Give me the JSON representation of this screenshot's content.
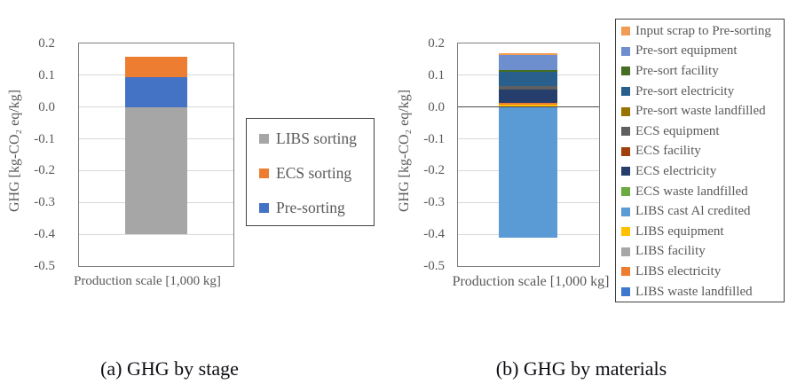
{
  "chart_data": [
    {
      "type": "bar",
      "caption": "(a) GHG by stage",
      "xlabel": "Production scale [1,000 kg]",
      "ylabel": "GHG [kg-CO₂ eq/kg]",
      "categories": [
        "Production scale [1,000 kg]"
      ],
      "ylim": [
        -0.5,
        0.2
      ],
      "y_ticks": [
        0.2,
        0.1,
        0.0,
        -0.1,
        -0.2,
        -0.3,
        -0.4,
        -0.5
      ],
      "y_tick_labels": [
        "0.2",
        "0.1",
        "0.0",
        "-0.1",
        "-0.2",
        "-0.3",
        "-0.4",
        "-0.5"
      ],
      "grid": true,
      "zero_axis_line": false,
      "legend_position": "right",
      "series": [
        {
          "name": "LIBS sorting",
          "value": -0.4,
          "color": "#A6A6A6"
        },
        {
          "name": "ECS sorting",
          "value": 0.062,
          "color": "#ED7D31"
        },
        {
          "name": "Pre-sorting",
          "value": 0.095,
          "color": "#4472C4"
        }
      ],
      "stack_top_to_bottom": [
        "ECS sorting",
        "Pre-sorting",
        "LIBS sorting"
      ]
    },
    {
      "type": "bar",
      "caption": "(b) GHG by materials",
      "xlabel": "Production scale [1,000 kg]",
      "ylabel": "GHG [kg-CO₂ eq/kg]",
      "categories": [
        "Production scale [1,000 kg]"
      ],
      "ylim": [
        -0.5,
        0.2
      ],
      "y_ticks": [
        0.2,
        0.1,
        0.0,
        -0.1,
        -0.2,
        -0.3,
        -0.4,
        -0.5
      ],
      "y_tick_labels": [
        "0.2",
        "0.1",
        "0.0",
        "-0.1",
        "-0.2",
        "-0.3",
        "-0.4",
        "-0.5"
      ],
      "grid": true,
      "zero_axis_line": true,
      "legend_position": "right",
      "series": [
        {
          "name": "Input scrap to Pre-sorting",
          "value": 0.005,
          "color": "#F09C55"
        },
        {
          "name": "Pre-sort equipment",
          "value": 0.05,
          "color": "#6E8FCE"
        },
        {
          "name": "Pre-sort facility",
          "value": 0.005,
          "color": "#446E21"
        },
        {
          "name": "Pre-sort electricity",
          "value": 0.043,
          "color": "#285F8D"
        },
        {
          "name": "Pre-sort waste landfilled",
          "value": 0.0,
          "color": "#997300"
        },
        {
          "name": "ECS equipment",
          "value": 0.011,
          "color": "#5F5F5F"
        },
        {
          "name": "ECS facility",
          "value": 0.0,
          "color": "#A0400E"
        },
        {
          "name": "ECS electricity",
          "value": 0.042,
          "color": "#263E6B"
        },
        {
          "name": "ECS waste landfilled",
          "value": 0.0,
          "color": "#6CAB40"
        },
        {
          "name": "LIBS cast Al credited",
          "value": -0.41,
          "color": "#5B9BD5"
        },
        {
          "name": "LIBS equipment",
          "value": 0.008,
          "color": "#FFC000"
        },
        {
          "name": "LIBS facility",
          "value": 0.0,
          "color": "#A6A6A6"
        },
        {
          "name": "LIBS electricity",
          "value": 0.006,
          "color": "#ED7D31"
        },
        {
          "name": "LIBS waste landfilled",
          "value": 0.0,
          "color": "#3E78CC"
        }
      ],
      "stack_top_to_bottom": [
        "Input scrap to Pre-sorting",
        "Pre-sort equipment",
        "Pre-sort facility",
        "Pre-sort electricity",
        "Pre-sort waste landfilled",
        "ECS equipment",
        "ECS facility",
        "ECS electricity",
        "ECS waste landfilled",
        "LIBS electricity",
        "LIBS equipment",
        "LIBS facility",
        "LIBS waste landfilled",
        "LIBS cast Al credited"
      ]
    }
  ]
}
